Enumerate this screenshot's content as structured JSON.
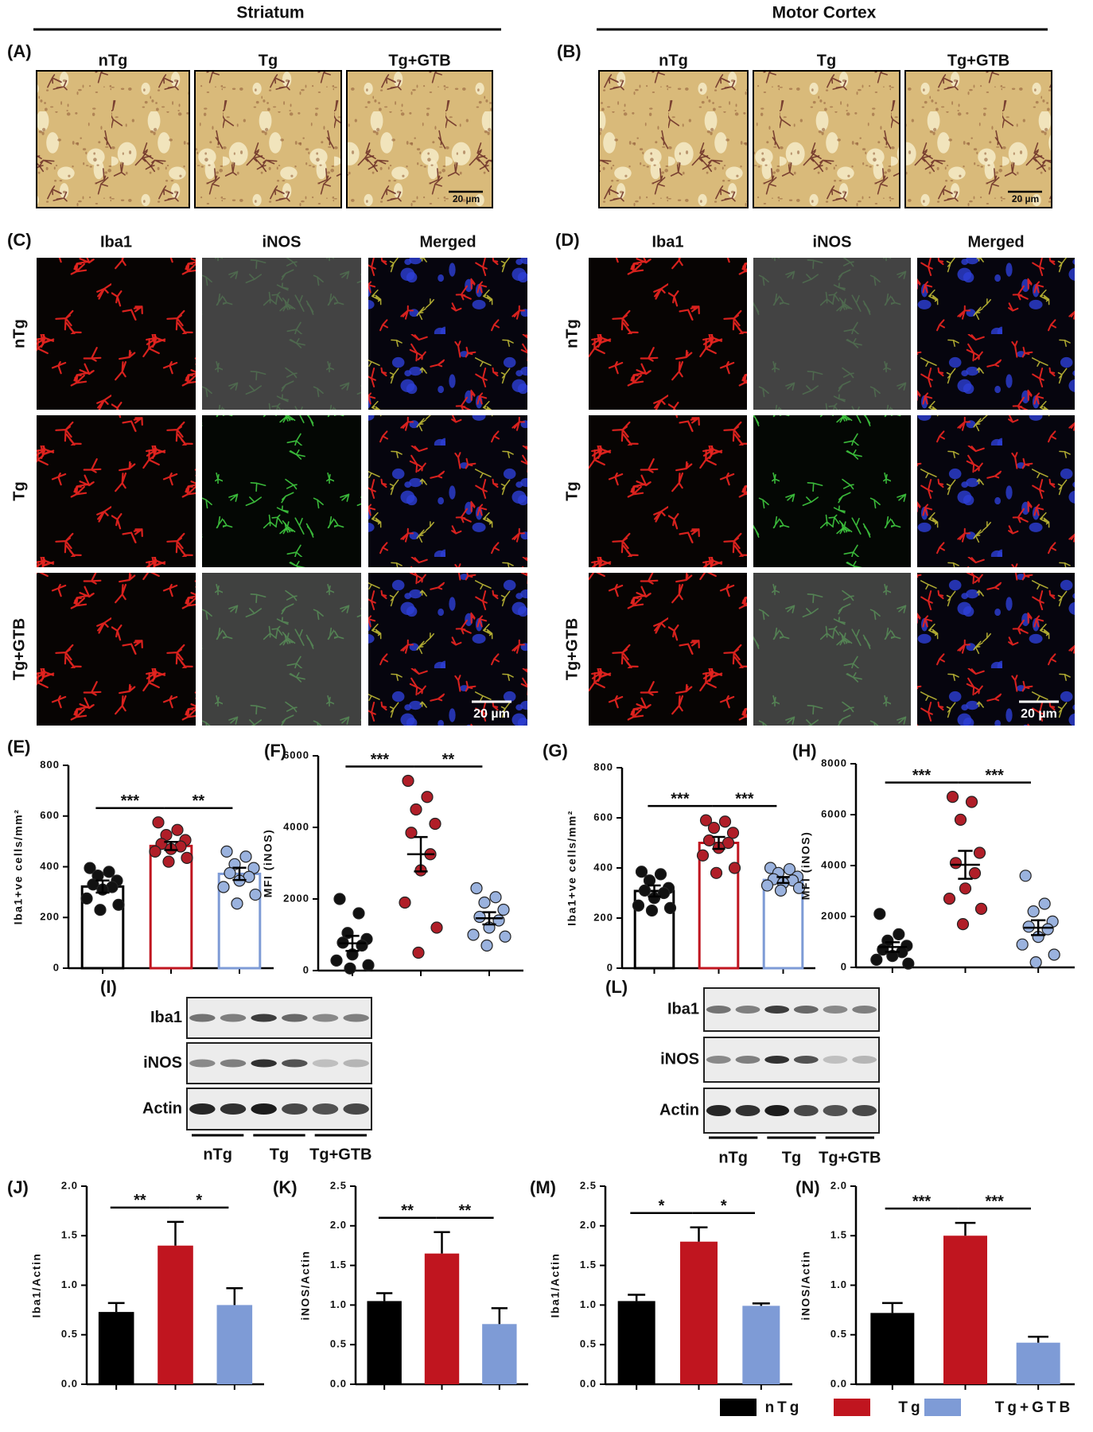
{
  "micrographs": [
    {
      "label": "(A)",
      "region": "Striatum",
      "columns": [
        "nTg",
        "Tg",
        "Tg+GTB"
      ],
      "scale_bar": "20 µm"
    },
    {
      "label": "(B)",
      "region": "Motor Cortex",
      "columns": [
        "nTg",
        "Tg",
        "Tg+GTB"
      ],
      "scale_bar": "20 µm"
    },
    {
      "label": "(C)",
      "columns": [
        "Iba1",
        "iNOS",
        "Merged"
      ],
      "rows": [
        "nTg",
        "Tg",
        "Tg+GTB"
      ],
      "scale_bar": "20 µm"
    },
    {
      "label": "(D)",
      "columns": [
        "Iba1",
        "iNOS",
        "Merged"
      ],
      "rows": [
        "nTg",
        "Tg",
        "Tg+GTB"
      ],
      "scale_bar": "20 µm"
    }
  ],
  "blots": [
    {
      "label": "(I)",
      "rows": [
        "Iba1",
        "iNOS",
        "Actin"
      ],
      "groups": [
        "nTg",
        "Tg",
        "Tg+GTB"
      ]
    },
    {
      "label": "(L)",
      "rows": [
        "Iba1",
        "iNOS",
        "Actin"
      ],
      "groups": [
        "nTg",
        "Tg",
        "Tg+GTB"
      ]
    }
  ],
  "legend": [
    {
      "name": "nTg",
      "color": "#000000"
    },
    {
      "name": "Tg",
      "color": "#c0151f"
    },
    {
      "name": "Tg+GTB",
      "color": "#7e9bd6"
    }
  ],
  "chart_data": [
    {
      "type": "bar_dot",
      "title": "(E)",
      "ylabel": "Iba1+ve cells/mm²",
      "ylim": [
        0,
        800
      ],
      "yticks": [
        0,
        200,
        400,
        600,
        800
      ],
      "values": [
        322,
        482,
        372
      ],
      "errors": [
        24,
        16,
        24
      ],
      "points": [
        [
          395,
          380,
          365,
          345,
          330,
          320,
          310,
          275,
          250,
          230
        ],
        [
          575,
          545,
          525,
          505,
          490,
          480,
          470,
          460,
          435,
          420
        ],
        [
          460,
          440,
          410,
          395,
          375,
          360,
          345,
          320,
          290,
          255
        ]
      ],
      "annotations": [
        "***",
        "**"
      ]
    },
    {
      "type": "dot",
      "title": "(F)",
      "ylabel": "MFI (iNOS)",
      "ylim": [
        0,
        6000
      ],
      "yticks": [
        0,
        2000,
        4000,
        6000
      ],
      "values": [
        760,
        3250,
        1460
      ],
      "errors": [
        210,
        480,
        170
      ],
      "points": [
        [
          2000,
          1600,
          1050,
          880,
          780,
          700,
          450,
          280,
          150,
          60
        ],
        [
          5300,
          4850,
          4500,
          4100,
          3850,
          3250,
          2800,
          1900,
          1200,
          500
        ],
        [
          2300,
          2050,
          1900,
          1700,
          1500,
          1400,
          1200,
          1000,
          950,
          700
        ]
      ],
      "annotations": [
        "***",
        "**"
      ]
    },
    {
      "type": "bar_dot",
      "title": "(G)",
      "ylabel": "Iba1+ve cells/mm²",
      "ylim": [
        0,
        800
      ],
      "yticks": [
        0,
        200,
        400,
        600,
        800
      ],
      "values": [
        308,
        500,
        352
      ],
      "errors": [
        22,
        24,
        12
      ],
      "points": [
        [
          385,
          375,
          350,
          320,
          310,
          300,
          280,
          250,
          240,
          230
        ],
        [
          590,
          585,
          560,
          540,
          510,
          500,
          480,
          450,
          400,
          380
        ],
        [
          400,
          395,
          380,
          365,
          355,
          350,
          340,
          330,
          320,
          310
        ]
      ],
      "annotations": [
        "***",
        "***"
      ]
    },
    {
      "type": "dot",
      "title": "(H)",
      "ylabel": "MFI (iNOS)",
      "ylim": [
        0,
        8000
      ],
      "yticks": [
        0,
        2000,
        4000,
        6000,
        8000
      ],
      "values": [
        800,
        4030,
        1560
      ],
      "errors": [
        190,
        550,
        290
      ],
      "points": [
        [
          2100,
          1300,
          1050,
          850,
          700,
          600,
          450,
          300,
          150
        ],
        [
          6700,
          6500,
          5800,
          4500,
          4100,
          3700,
          3100,
          2700,
          2300,
          1700
        ],
        [
          3600,
          2500,
          2200,
          1800,
          1600,
          1500,
          1200,
          900,
          500,
          200
        ]
      ],
      "annotations": [
        "***",
        "***"
      ]
    },
    {
      "type": "bar",
      "title": "(J)",
      "ylabel": "Iba1/Actin",
      "ylim": [
        0,
        2
      ],
      "yticks": [
        {
          "value": 0,
          "label": "0.0"
        },
        0.5,
        {
          "value": 1,
          "label": "1.0"
        },
        1.5,
        {
          "value": 2,
          "label": "2.0"
        }
      ],
      "values": [
        0.73,
        1.4,
        0.8
      ],
      "errors": [
        0.09,
        0.24,
        0.17
      ],
      "annotations": [
        "**",
        "*"
      ]
    },
    {
      "type": "bar",
      "title": "(K)",
      "ylabel": "iNOS/Actin",
      "ylim": [
        0,
        2.5
      ],
      "yticks": [
        {
          "value": 0,
          "label": "0.0"
        },
        0.5,
        {
          "value": 1,
          "label": "1.0"
        },
        1.5,
        {
          "value": 2,
          "label": "2.0"
        },
        2.5
      ],
      "values": [
        1.05,
        1.65,
        0.76
      ],
      "errors": [
        0.1,
        0.27,
        0.2
      ],
      "annotations": [
        "**",
        "**"
      ]
    },
    {
      "type": "bar",
      "title": "(M)",
      "ylabel": "Iba1/Actin",
      "ylim": [
        0,
        2.5
      ],
      "yticks": [
        {
          "value": 0,
          "label": "0.0"
        },
        0.5,
        {
          "value": 1,
          "label": "1.0"
        },
        1.5,
        {
          "value": 2,
          "label": "2.0"
        },
        2.5
      ],
      "values": [
        1.05,
        1.8,
        0.99
      ],
      "errors": [
        0.08,
        0.18,
        0.03
      ],
      "annotations": [
        "*",
        "*"
      ]
    },
    {
      "type": "bar",
      "title": "(N)",
      "ylabel": "iNOS/Actin",
      "ylim": [
        0,
        2
      ],
      "yticks": [
        {
          "value": 0,
          "label": "0.0"
        },
        0.5,
        {
          "value": 1,
          "label": "1.0"
        },
        1.5,
        {
          "value": 2,
          "label": "2.0"
        }
      ],
      "values": [
        0.72,
        1.5,
        0.42
      ],
      "errors": [
        0.1,
        0.13,
        0.06
      ],
      "annotations": [
        "***",
        "***"
      ]
    }
  ]
}
